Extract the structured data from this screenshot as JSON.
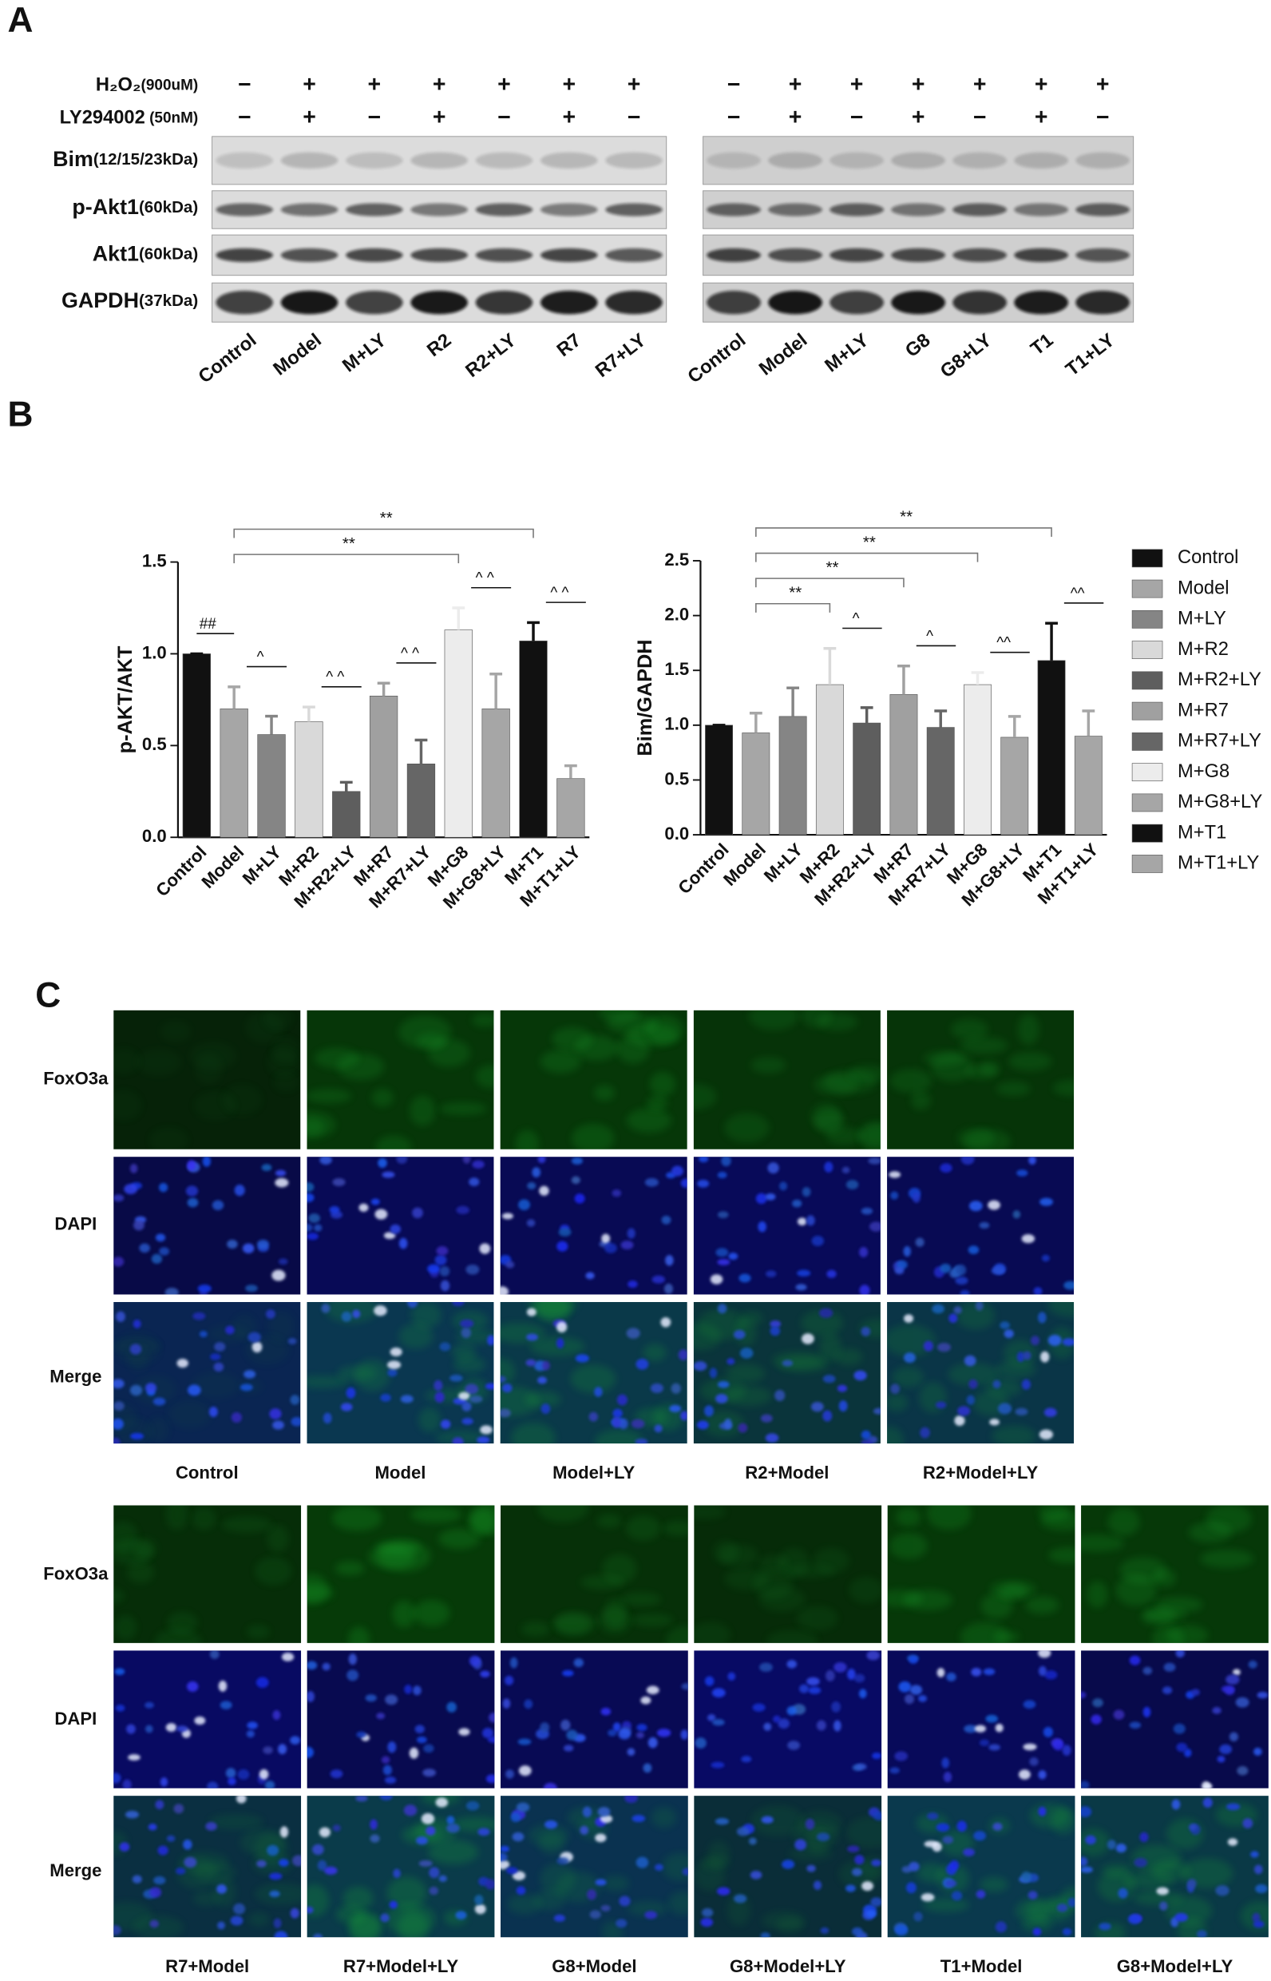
{
  "panel_a": {
    "label": "A",
    "treatments": [
      {
        "name": "H₂O₂",
        "unit": "(900uM)"
      },
      {
        "name": "LY294002",
        "unit": " (50nM)"
      }
    ],
    "proteins": [
      {
        "name": "Bim",
        "size": "(12/15/23kDa)"
      },
      {
        "name": "p-Akt1",
        "size": "(60kDa)"
      },
      {
        "name": "Akt1",
        "size": "(60kDa)"
      },
      {
        "name": "GAPDH",
        "size": "(37kDa)"
      }
    ],
    "blots": [
      {
        "signs": [
          [
            "−",
            "+",
            "+",
            "+",
            "+",
            "+",
            "+"
          ],
          [
            "−",
            "+",
            "−",
            "+",
            "−",
            "+",
            "−"
          ]
        ],
        "lanes": [
          "Control",
          "Model",
          "M+LY",
          "R2",
          "R2+LY",
          "R7",
          "R7+LY"
        ]
      },
      {
        "signs": [
          [
            "−",
            "+",
            "+",
            "+",
            "+",
            "+",
            "+"
          ],
          [
            "−",
            "+",
            "−",
            "+",
            "−",
            "+",
            "−"
          ]
        ],
        "lanes": [
          "Control",
          "Model",
          "M+LY",
          "G8",
          "G8+LY",
          "T1",
          "T1+LY"
        ]
      }
    ]
  },
  "panel_b": {
    "label": "B"
  },
  "chart_data": [
    {
      "type": "bar",
      "ylabel": "p-AKT/AKT",
      "categories": [
        "Control",
        "Model",
        "M+LY",
        "M+R2",
        "M+R2+LY",
        "M+R7",
        "M+R7+LY",
        "M+G8",
        "M+G8+LY",
        "M+T1",
        "M+T1+LY"
      ],
      "values": [
        1.0,
        0.7,
        0.56,
        0.63,
        0.25,
        0.77,
        0.4,
        1.13,
        0.7,
        1.07,
        0.32
      ],
      "errors": [
        0,
        0.12,
        0.1,
        0.08,
        0.05,
        0.07,
        0.13,
        0.12,
        0.19,
        0.1,
        0.07
      ],
      "colors": [
        "#111111",
        "#a6a6a6",
        "#858585",
        "#d9d9d9",
        "#5e5e5e",
        "#a0a0a0",
        "#666666",
        "#ececec",
        "#a6a6a6",
        "#111111",
        "#a6a6a6"
      ],
      "ylim": [
        0,
        1.5
      ],
      "yticks": [
        {
          "value": 0,
          "label": "0.0"
        },
        0.5,
        {
          "value": 1,
          "label": "1.0"
        },
        1.5
      ],
      "annotations": [
        {
          "text": "##",
          "from": "Control",
          "to": "Model"
        },
        {
          "text": "^",
          "from": "Model",
          "to": "M+LY"
        },
        {
          "text": "^ ^",
          "from": "M+R2",
          "to": "M+R2+LY"
        },
        {
          "text": "^ ^",
          "from": "M+R7",
          "to": "M+R7+LY"
        },
        {
          "text": "^ ^",
          "from": "M+G8",
          "to": "M+G8+LY"
        },
        {
          "text": "^ ^",
          "from": "M+T1",
          "to": "M+T1+LY"
        },
        {
          "text": "**",
          "from": "Model",
          "to": "M+G8"
        },
        {
          "text": "**",
          "from": "Model",
          "to": "M+T1"
        }
      ]
    },
    {
      "type": "bar",
      "ylabel": "Bim/GAPDH",
      "categories": [
        "Control",
        "Model",
        "M+LY",
        "M+R2",
        "M+R2+LY",
        "M+R7",
        "M+R7+LY",
        "M+G8",
        "M+G8+LY",
        "M+T1",
        "M+T1+LY"
      ],
      "values": [
        1.0,
        0.93,
        1.08,
        1.37,
        1.02,
        1.28,
        0.98,
        1.37,
        0.89,
        1.59,
        0.9
      ],
      "errors": [
        0,
        0.18,
        0.26,
        0.33,
        0.14,
        0.26,
        0.15,
        0.11,
        0.19,
        0.34,
        0.23
      ],
      "colors": [
        "#111111",
        "#a6a6a6",
        "#858585",
        "#d9d9d9",
        "#5e5e5e",
        "#a0a0a0",
        "#666666",
        "#ececec",
        "#a6a6a6",
        "#111111",
        "#a6a6a6"
      ],
      "ylim": [
        0,
        2.5
      ],
      "yticks": [
        {
          "value": 0,
          "label": "0.0"
        },
        0.5,
        {
          "value": 1,
          "label": "1.0"
        },
        1.5,
        {
          "value": 2,
          "label": "2.0"
        },
        2.5
      ],
      "legend": true,
      "annotations": [
        {
          "text": "^",
          "from": "M+R2",
          "to": "M+R2+LY"
        },
        {
          "text": "^",
          "from": "M+R7",
          "to": "M+R7+LY"
        },
        {
          "text": "^^",
          "from": "M+G8",
          "to": "M+G8+LY"
        },
        {
          "text": "^^",
          "from": "M+T1",
          "to": "M+T1+LY"
        },
        {
          "text": "**",
          "from": "Model",
          "to": "M+R2"
        },
        {
          "text": "**",
          "from": "Model",
          "to": "M+R7"
        },
        {
          "text": "**",
          "from": "Model",
          "to": "M+G8"
        },
        {
          "text": "**",
          "from": "Model",
          "to": "M+T1"
        }
      ]
    }
  ],
  "panel_c": {
    "label": "C",
    "groups": [
      {
        "rows": [
          "FoxO3a",
          "DAPI",
          "Merge"
        ],
        "columns": [
          "Control",
          "Model",
          "Model+LY",
          "R2+Model",
          "R2+Model+LY"
        ]
      },
      {
        "rows": [
          "FoxO3a",
          "DAPI",
          "Merge"
        ],
        "columns": [
          "R7+Model",
          "R7+Model+LY",
          "G8+Model",
          "G8+Model+LY",
          "T1+Model",
          "G8+Model+LY"
        ]
      }
    ]
  }
}
